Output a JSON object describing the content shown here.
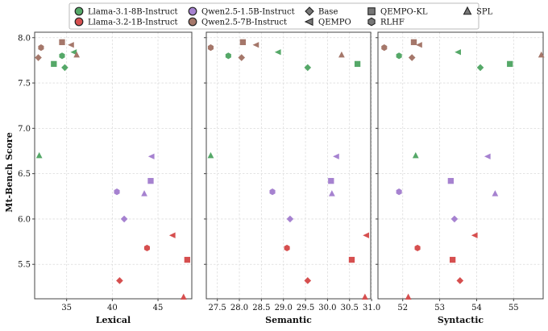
{
  "chart_data": [
    {
      "type": "scatter",
      "title": "",
      "xlabel": "Lexical",
      "ylabel": "Mt-Bench Score",
      "xlim": [
        31.5,
        48.7
      ],
      "ylim": [
        5.12,
        8.06
      ],
      "xticks": [
        35,
        40,
        45
      ],
      "yticks": [
        5.5,
        6.0,
        6.5,
        7.0,
        7.5,
        8.0
      ],
      "grid": true,
      "points": [
        {
          "model": "Llama-3.1-8B-Instruct",
          "method": "Base",
          "x": 34.8,
          "y": 7.67
        },
        {
          "model": "Llama-3.1-8B-Instruct",
          "method": "QEMPO-KL",
          "x": 33.6,
          "y": 7.71
        },
        {
          "model": "Llama-3.1-8B-Instruct",
          "method": "RLHF",
          "x": 34.5,
          "y": 7.8
        },
        {
          "model": "Llama-3.1-8B-Instruct",
          "method": "QEMPO",
          "x": 35.8,
          "y": 7.84
        },
        {
          "model": "Llama-3.1-8B-Instruct",
          "method": "SPL",
          "x": 32.0,
          "y": 6.7
        },
        {
          "model": "Llama-3.2-1B-Instruct",
          "method": "Base",
          "x": 40.8,
          "y": 5.32
        },
        {
          "model": "Llama-3.2-1B-Instruct",
          "method": "QEMPO-KL",
          "x": 48.2,
          "y": 5.55
        },
        {
          "model": "Llama-3.2-1B-Instruct",
          "method": "RLHF",
          "x": 43.8,
          "y": 5.68
        },
        {
          "model": "Llama-3.2-1B-Instruct",
          "method": "QEMPO",
          "x": 46.6,
          "y": 5.82
        },
        {
          "model": "Llama-3.2-1B-Instruct",
          "method": "SPL",
          "x": 47.8,
          "y": 5.14
        },
        {
          "model": "Qwen2.5-1.5B-Instruct",
          "method": "Base",
          "x": 41.3,
          "y": 6.0
        },
        {
          "model": "Qwen2.5-1.5B-Instruct",
          "method": "QEMPO-KL",
          "x": 44.2,
          "y": 6.42
        },
        {
          "model": "Qwen2.5-1.5B-Instruct",
          "method": "RLHF",
          "x": 40.5,
          "y": 6.3
        },
        {
          "model": "Qwen2.5-1.5B-Instruct",
          "method": "QEMPO",
          "x": 44.3,
          "y": 6.69
        },
        {
          "model": "Qwen2.5-1.5B-Instruct",
          "method": "SPL",
          "x": 43.5,
          "y": 6.28
        },
        {
          "model": "Qwen2.5-7B-Instruct",
          "method": "Base",
          "x": 31.9,
          "y": 7.78
        },
        {
          "model": "Qwen2.5-7B-Instruct",
          "method": "QEMPO-KL",
          "x": 34.5,
          "y": 7.95
        },
        {
          "model": "Qwen2.5-7B-Instruct",
          "method": "RLHF",
          "x": 32.2,
          "y": 7.89
        },
        {
          "model": "Qwen2.5-7B-Instruct",
          "method": "QEMPO",
          "x": 35.5,
          "y": 7.92
        },
        {
          "model": "Qwen2.5-7B-Instruct",
          "method": "SPL",
          "x": 36.1,
          "y": 7.81
        }
      ]
    },
    {
      "type": "scatter",
      "title": "",
      "xlabel": "Semantic",
      "ylabel": "Mt-Bench Score",
      "xlim": [
        27.25,
        30.98
      ],
      "ylim": [
        5.12,
        8.06
      ],
      "xticks": [
        27.5,
        28.0,
        28.5,
        29.0,
        29.5,
        30.0,
        30.5,
        31.0
      ],
      "yticks": [
        5.5,
        6.0,
        6.5,
        7.0,
        7.5,
        8.0
      ],
      "grid": true,
      "points": [
        {
          "model": "Llama-3.1-8B-Instruct",
          "method": "Base",
          "x": 29.55,
          "y": 7.67
        },
        {
          "model": "Llama-3.1-8B-Instruct",
          "method": "QEMPO-KL",
          "x": 30.68,
          "y": 7.71
        },
        {
          "model": "Llama-3.1-8B-Instruct",
          "method": "RLHF",
          "x": 27.75,
          "y": 7.8
        },
        {
          "model": "Llama-3.1-8B-Instruct",
          "method": "QEMPO",
          "x": 28.88,
          "y": 7.84
        },
        {
          "model": "Llama-3.1-8B-Instruct",
          "method": "SPL",
          "x": 27.35,
          "y": 6.7
        },
        {
          "model": "Llama-3.2-1B-Instruct",
          "method": "Base",
          "x": 29.55,
          "y": 5.32
        },
        {
          "model": "Llama-3.2-1B-Instruct",
          "method": "QEMPO-KL",
          "x": 30.55,
          "y": 5.55
        },
        {
          "model": "Llama-3.2-1B-Instruct",
          "method": "RLHF",
          "x": 29.08,
          "y": 5.68
        },
        {
          "model": "Llama-3.2-1B-Instruct",
          "method": "QEMPO",
          "x": 30.88,
          "y": 5.82
        },
        {
          "model": "Llama-3.2-1B-Instruct",
          "method": "SPL",
          "x": 30.85,
          "y": 5.14
        },
        {
          "model": "Qwen2.5-1.5B-Instruct",
          "method": "Base",
          "x": 29.15,
          "y": 6.0
        },
        {
          "model": "Qwen2.5-1.5B-Instruct",
          "method": "QEMPO-KL",
          "x": 30.08,
          "y": 6.42
        },
        {
          "model": "Qwen2.5-1.5B-Instruct",
          "method": "RLHF",
          "x": 28.75,
          "y": 6.3
        },
        {
          "model": "Qwen2.5-1.5B-Instruct",
          "method": "QEMPO",
          "x": 30.2,
          "y": 6.69
        },
        {
          "model": "Qwen2.5-1.5B-Instruct",
          "method": "SPL",
          "x": 30.1,
          "y": 6.28
        },
        {
          "model": "Qwen2.5-7B-Instruct",
          "method": "Base",
          "x": 28.05,
          "y": 7.78
        },
        {
          "model": "Qwen2.5-7B-Instruct",
          "method": "QEMPO-KL",
          "x": 28.08,
          "y": 7.95
        },
        {
          "model": "Qwen2.5-7B-Instruct",
          "method": "RLHF",
          "x": 27.35,
          "y": 7.89
        },
        {
          "model": "Qwen2.5-7B-Instruct",
          "method": "QEMPO",
          "x": 28.38,
          "y": 7.92
        },
        {
          "model": "Qwen2.5-7B-Instruct",
          "method": "SPL",
          "x": 30.32,
          "y": 7.81
        }
      ]
    },
    {
      "type": "scatter",
      "title": "",
      "xlabel": "Syntactic",
      "ylabel": "Mt-Bench Score",
      "xlim": [
        51.33,
        55.8
      ],
      "ylim": [
        5.12,
        8.06
      ],
      "xticks": [
        52,
        53,
        54,
        55
      ],
      "yticks": [
        5.5,
        6.0,
        6.5,
        7.0,
        7.5,
        8.0
      ],
      "grid": true,
      "points": [
        {
          "model": "Llama-3.1-8B-Instruct",
          "method": "Base",
          "x": 54.1,
          "y": 7.67
        },
        {
          "model": "Llama-3.1-8B-Instruct",
          "method": "QEMPO-KL",
          "x": 54.9,
          "y": 7.71
        },
        {
          "model": "Llama-3.1-8B-Instruct",
          "method": "RLHF",
          "x": 51.9,
          "y": 7.8
        },
        {
          "model": "Llama-3.1-8B-Instruct",
          "method": "QEMPO",
          "x": 53.5,
          "y": 7.84
        },
        {
          "model": "Llama-3.1-8B-Instruct",
          "method": "SPL",
          "x": 52.35,
          "y": 6.7
        },
        {
          "model": "Llama-3.2-1B-Instruct",
          "method": "Base",
          "x": 53.55,
          "y": 5.32
        },
        {
          "model": "Llama-3.2-1B-Instruct",
          "method": "QEMPO-KL",
          "x": 53.35,
          "y": 5.55
        },
        {
          "model": "Llama-3.2-1B-Instruct",
          "method": "RLHF",
          "x": 52.4,
          "y": 5.68
        },
        {
          "model": "Llama-3.2-1B-Instruct",
          "method": "QEMPO",
          "x": 53.95,
          "y": 5.82
        },
        {
          "model": "Llama-3.2-1B-Instruct",
          "method": "SPL",
          "x": 52.15,
          "y": 5.14
        },
        {
          "model": "Qwen2.5-1.5B-Instruct",
          "method": "Base",
          "x": 53.4,
          "y": 6.0
        },
        {
          "model": "Qwen2.5-1.5B-Instruct",
          "method": "QEMPO-KL",
          "x": 53.3,
          "y": 6.42
        },
        {
          "model": "Qwen2.5-1.5B-Instruct",
          "method": "RLHF",
          "x": 51.9,
          "y": 6.3
        },
        {
          "model": "Qwen2.5-1.5B-Instruct",
          "method": "QEMPO",
          "x": 54.3,
          "y": 6.69
        },
        {
          "model": "Qwen2.5-1.5B-Instruct",
          "method": "SPL",
          "x": 54.5,
          "y": 6.28
        },
        {
          "model": "Qwen2.5-7B-Instruct",
          "method": "Base",
          "x": 52.25,
          "y": 7.78
        },
        {
          "model": "Qwen2.5-7B-Instruct",
          "method": "QEMPO-KL",
          "x": 52.3,
          "y": 7.95
        },
        {
          "model": "Qwen2.5-7B-Instruct",
          "method": "RLHF",
          "x": 51.5,
          "y": 7.89
        },
        {
          "model": "Qwen2.5-7B-Instruct",
          "method": "QEMPO",
          "x": 52.45,
          "y": 7.92
        },
        {
          "model": "Qwen2.5-7B-Instruct",
          "method": "SPL",
          "x": 55.75,
          "y": 7.81
        }
      ]
    }
  ],
  "legend": {
    "placement": "top-center",
    "models": [
      {
        "name": "Llama-3.1-8B-Instruct",
        "color": "#55a868"
      },
      {
        "name": "Llama-3.2-1B-Instruct",
        "color": "#d64f4f"
      },
      {
        "name": "Qwen2.5-1.5B-Instruct",
        "color": "#a682d0"
      },
      {
        "name": "Qwen2.5-7B-Instruct",
        "color": "#a5776a"
      }
    ],
    "methods": [
      {
        "name": "Base",
        "marker": "diamond"
      },
      {
        "name": "QEMPO",
        "marker": "triangle-left"
      },
      {
        "name": "QEMPO-KL",
        "marker": "square"
      },
      {
        "name": "RLHF",
        "marker": "hexagon"
      },
      {
        "name": "SPL",
        "marker": "triangle-up"
      }
    ]
  }
}
